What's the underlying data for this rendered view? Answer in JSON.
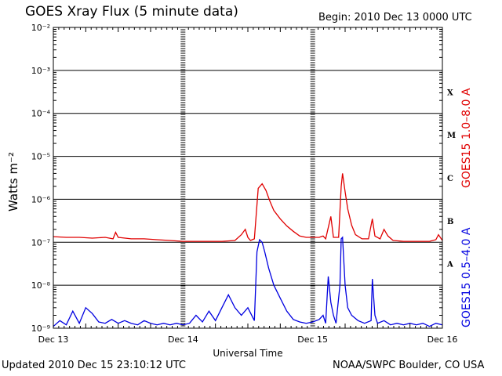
{
  "header": {
    "title": "GOES Xray Flux (5 minute data)",
    "begin": "Begin:  2010 Dec 13 0000 UTC"
  },
  "footer": {
    "updated": "Updated 2010 Dec 15 23:10:12 UTC",
    "credit": "NOAA/SWPC Boulder, CO USA"
  },
  "chart_data": {
    "type": "line",
    "title": "GOES Xray Flux (5 minute data)",
    "xlabel": "Universal Time",
    "ylabel": "Watts m⁻²",
    "y_scale": "log",
    "ylim": [
      1e-09,
      0.01
    ],
    "y_ticks": [
      "10⁻⁹",
      "10⁻⁸",
      "10⁻⁷",
      "10⁻⁶",
      "10⁻⁵",
      "10⁻⁴",
      "10⁻³",
      "10⁻²"
    ],
    "x_ticks": [
      "Dec 13",
      "Dec 14",
      "Dec 15",
      "Dec 16"
    ],
    "xlim_days": [
      13,
      16
    ],
    "flare_classes": [
      "X",
      "M",
      "C",
      "B",
      "A"
    ],
    "grid": true,
    "colors": {
      "long": "#e00000",
      "short": "#0000e0",
      "axis": "#000000"
    },
    "series": [
      {
        "name": "GOES15 1.0–8.0 A",
        "color": "#e00000",
        "points": [
          [
            13.0,
            1.35e-07
          ],
          [
            13.1,
            1.3e-07
          ],
          [
            13.2,
            1.3e-07
          ],
          [
            13.3,
            1.25e-07
          ],
          [
            13.4,
            1.3e-07
          ],
          [
            13.46,
            1.2e-07
          ],
          [
            13.48,
            1.7e-07
          ],
          [
            13.5,
            1.3e-07
          ],
          [
            13.6,
            1.2e-07
          ],
          [
            13.7,
            1.2e-07
          ],
          [
            13.8,
            1.15e-07
          ],
          [
            13.9,
            1.1e-07
          ],
          [
            14.0,
            1.05e-07
          ],
          [
            14.1,
            1.05e-07
          ],
          [
            14.2,
            1.05e-07
          ],
          [
            14.3,
            1.05e-07
          ],
          [
            14.4,
            1.1e-07
          ],
          [
            14.45,
            1.5e-07
          ],
          [
            14.48,
            2e-07
          ],
          [
            14.5,
            1.3e-07
          ],
          [
            14.52,
            1.1e-07
          ],
          [
            14.55,
            1.2e-07
          ],
          [
            14.58,
            1.8e-06
          ],
          [
            14.61,
            2.3e-06
          ],
          [
            14.64,
            1.6e-06
          ],
          [
            14.67,
            9e-07
          ],
          [
            14.7,
            5.5e-07
          ],
          [
            14.75,
            3.5e-07
          ],
          [
            14.8,
            2.4e-07
          ],
          [
            14.85,
            1.8e-07
          ],
          [
            14.9,
            1.4e-07
          ],
          [
            14.95,
            1.3e-07
          ],
          [
            15.0,
            1.3e-07
          ],
          [
            15.05,
            1.3e-07
          ],
          [
            15.08,
            1.4e-07
          ],
          [
            15.1,
            1.2e-07
          ],
          [
            15.14,
            4e-07
          ],
          [
            15.16,
            1.3e-07
          ],
          [
            15.2,
            1.3e-07
          ],
          [
            15.22,
            2e-06
          ],
          [
            15.23,
            4e-06
          ],
          [
            15.25,
            1.5e-06
          ],
          [
            15.27,
            6e-07
          ],
          [
            15.3,
            2.5e-07
          ],
          [
            15.33,
            1.5e-07
          ],
          [
            15.38,
            1.2e-07
          ],
          [
            15.43,
            1.2e-07
          ],
          [
            15.46,
            3.5e-07
          ],
          [
            15.48,
            1.4e-07
          ],
          [
            15.52,
            1.2e-07
          ],
          [
            15.55,
            2e-07
          ],
          [
            15.58,
            1.4e-07
          ],
          [
            15.62,
            1.1e-07
          ],
          [
            15.7,
            1.05e-07
          ],
          [
            15.8,
            1.05e-07
          ],
          [
            15.9,
            1.05e-07
          ],
          [
            15.95,
            1.15e-07
          ],
          [
            15.97,
            1.5e-07
          ],
          [
            16.0,
            1.1e-07
          ]
        ]
      },
      {
        "name": "GOES15 0.5–4.0 A",
        "color": "#0000e0",
        "points": [
          [
            13.0,
            1.1e-09
          ],
          [
            13.05,
            1.5e-09
          ],
          [
            13.1,
            1.2e-09
          ],
          [
            13.15,
            2.5e-09
          ],
          [
            13.2,
            1.3e-09
          ],
          [
            13.25,
            3e-09
          ],
          [
            13.3,
            2.2e-09
          ],
          [
            13.35,
            1.4e-09
          ],
          [
            13.4,
            1.3e-09
          ],
          [
            13.45,
            1.6e-09
          ],
          [
            13.5,
            1.3e-09
          ],
          [
            13.55,
            1.5e-09
          ],
          [
            13.6,
            1.3e-09
          ],
          [
            13.65,
            1.2e-09
          ],
          [
            13.7,
            1.5e-09
          ],
          [
            13.75,
            1.3e-09
          ],
          [
            13.8,
            1.2e-09
          ],
          [
            13.85,
            1.3e-09
          ],
          [
            13.9,
            1.2e-09
          ],
          [
            13.95,
            1.3e-09
          ],
          [
            14.0,
            1.2e-09
          ],
          [
            14.05,
            1.3e-09
          ],
          [
            14.1,
            2e-09
          ],
          [
            14.15,
            1.4e-09
          ],
          [
            14.2,
            2.5e-09
          ],
          [
            14.25,
            1.5e-09
          ],
          [
            14.3,
            3e-09
          ],
          [
            14.35,
            6e-09
          ],
          [
            14.4,
            3e-09
          ],
          [
            14.45,
            2e-09
          ],
          [
            14.5,
            3e-09
          ],
          [
            14.55,
            1.5e-09
          ],
          [
            14.57,
            6e-08
          ],
          [
            14.59,
            1.15e-07
          ],
          [
            14.61,
            1e-07
          ],
          [
            14.63,
            6e-08
          ],
          [
            14.66,
            2.5e-08
          ],
          [
            14.7,
            1e-08
          ],
          [
            14.75,
            5e-09
          ],
          [
            14.8,
            2.5e-09
          ],
          [
            14.85,
            1.6e-09
          ],
          [
            14.9,
            1.4e-09
          ],
          [
            14.95,
            1.3e-09
          ],
          [
            15.0,
            1.4e-09
          ],
          [
            15.05,
            1.6e-09
          ],
          [
            15.08,
            2e-09
          ],
          [
            15.1,
            1.3e-09
          ],
          [
            15.12,
            1.6e-08
          ],
          [
            15.14,
            4e-09
          ],
          [
            15.16,
            2e-09
          ],
          [
            15.18,
            1.3e-09
          ],
          [
            15.21,
            1e-08
          ],
          [
            15.22,
            1.2e-07
          ],
          [
            15.23,
            1.3e-07
          ],
          [
            15.25,
            1e-08
          ],
          [
            15.27,
            3e-09
          ],
          [
            15.3,
            2e-09
          ],
          [
            15.35,
            1.5e-09
          ],
          [
            15.4,
            1.3e-09
          ],
          [
            15.45,
            1.5e-09
          ],
          [
            15.46,
            1.4e-08
          ],
          [
            15.48,
            2e-09
          ],
          [
            15.5,
            1.3e-09
          ],
          [
            15.55,
            1.5e-09
          ],
          [
            15.6,
            1.2e-09
          ],
          [
            15.65,
            1.3e-09
          ],
          [
            15.7,
            1.2e-09
          ],
          [
            15.75,
            1.3e-09
          ],
          [
            15.8,
            1.2e-09
          ],
          [
            15.85,
            1.3e-09
          ],
          [
            15.9,
            1.1e-09
          ],
          [
            15.95,
            1.3e-09
          ],
          [
            16.0,
            1.2e-09
          ]
        ]
      }
    ]
  }
}
